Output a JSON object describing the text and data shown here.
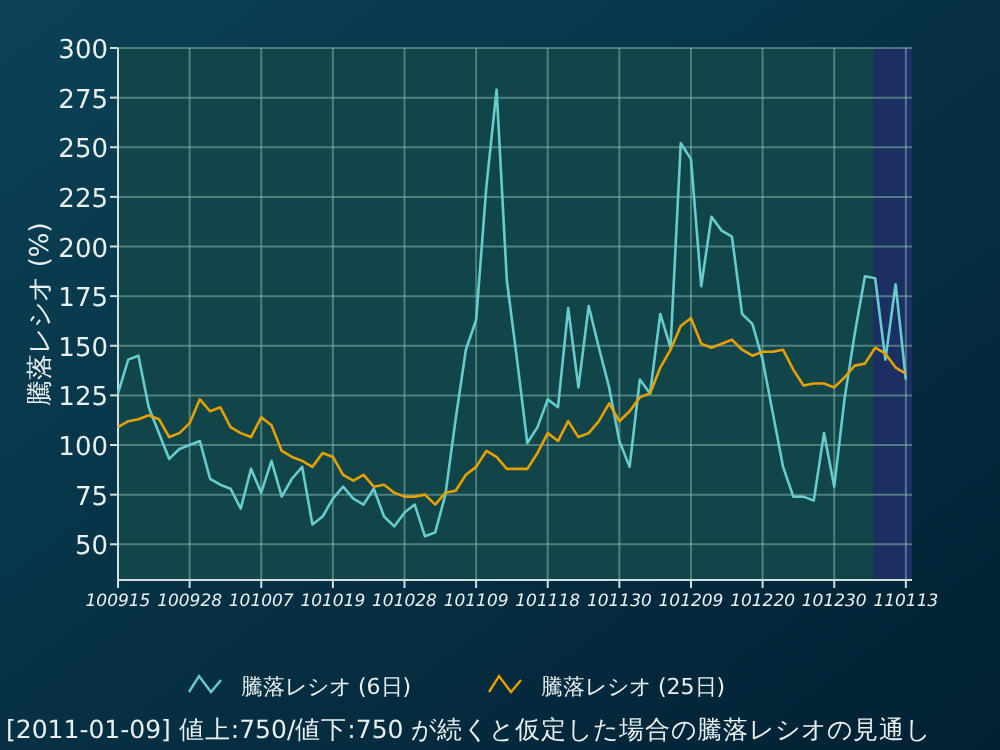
{
  "chart_data": {
    "type": "line",
    "ylabel": "騰落レシオ (%)",
    "categories": [
      "100915",
      null,
      null,
      null,
      null,
      null,
      null,
      "100928",
      null,
      null,
      null,
      null,
      null,
      null,
      "101007",
      null,
      null,
      null,
      null,
      null,
      null,
      "101019",
      null,
      null,
      null,
      null,
      null,
      null,
      "101028",
      null,
      null,
      null,
      null,
      null,
      null,
      "101109",
      null,
      null,
      null,
      null,
      null,
      null,
      "101118",
      null,
      null,
      null,
      null,
      null,
      null,
      "101130",
      null,
      null,
      null,
      null,
      null,
      null,
      "101209",
      null,
      null,
      null,
      null,
      null,
      null,
      "101220",
      null,
      null,
      null,
      null,
      null,
      null,
      "101230",
      null,
      null,
      null,
      null,
      null,
      null,
      "110113"
    ],
    "series": [
      {
        "name": "騰落レシオ (6日)",
        "color": "#66cccc",
        "values": [
          126,
          143,
          145,
          119,
          106,
          93,
          98,
          100,
          102,
          83,
          80,
          78,
          68,
          88,
          76,
          92,
          74,
          83,
          89,
          60,
          64,
          73,
          79,
          73,
          70,
          78,
          64,
          59,
          66,
          70,
          54,
          56,
          75,
          113,
          148,
          163,
          230,
          279,
          183,
          143,
          101,
          109,
          123,
          119,
          169,
          129,
          170,
          149,
          129,
          102,
          89,
          133,
          126,
          166,
          149,
          252,
          244,
          180,
          215,
          208,
          205,
          166,
          161,
          143,
          116,
          89,
          74,
          74,
          72,
          106,
          79,
          123,
          156,
          185,
          184,
          143,
          181,
          133
        ]
      },
      {
        "name": "騰落レシオ (25日)",
        "color": "#e6a000",
        "values": [
          109,
          112,
          113,
          115,
          113,
          104,
          106,
          111,
          123,
          117,
          119,
          109,
          106,
          104,
          114,
          110,
          97,
          94,
          92,
          89,
          96,
          94,
          85,
          82,
          85,
          79,
          80,
          76,
          74,
          74,
          75,
          70,
          76,
          77,
          85,
          89,
          97,
          94,
          88,
          88,
          88,
          96,
          106,
          102,
          112,
          104,
          106,
          112,
          121,
          112,
          117,
          124,
          126,
          139,
          148,
          160,
          164,
          151,
          149,
          151,
          153,
          148,
          145,
          147,
          147,
          148,
          138,
          130,
          131,
          131,
          129,
          134,
          140,
          141,
          149,
          146,
          139,
          136
        ]
      }
    ],
    "ylim": [
      32,
      300
    ],
    "yticks": [
      50,
      75,
      100,
      125,
      150,
      175,
      200,
      225,
      250,
      275,
      300
    ],
    "grid": true,
    "legend": "bottom",
    "marker": "none",
    "line_style": "solid",
    "annotations": [
      "[2011-01-09] 値上:750/値下:750 が続くと仮定した場合の騰落レシオの見通し"
    ]
  }
}
